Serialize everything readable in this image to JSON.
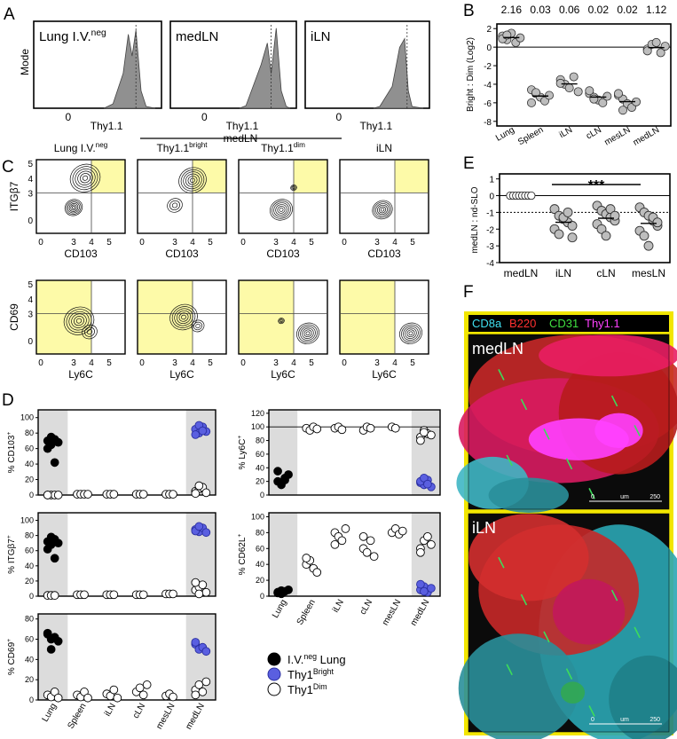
{
  "panel_letters": {
    "a": "A",
    "b": "B",
    "c": "C",
    "d": "D",
    "e": "E",
    "f": "F"
  },
  "panelA": {
    "ylabel": "Mode",
    "xlabel": "Thy1.1",
    "tick": "0",
    "titles": [
      "Lung I.V.",
      "medLN",
      "iLN"
    ],
    "title_sup": "neg"
  },
  "panelB": {
    "ylabel": "Bright : Dim (Log2)",
    "ratios": [
      "2.16",
      "0.03",
      "0.06",
      "0.02",
      "0.02",
      "1.12"
    ],
    "categories": [
      "Lung",
      "Spleen",
      "iLN",
      "cLN",
      "mesLN",
      "medLN"
    ],
    "yticks": [
      "2",
      "0",
      "-2",
      "-4",
      "-6",
      "-8"
    ]
  },
  "panelC": {
    "col_titles": [
      "Lung I.V.",
      "Thy1.1",
      "Thy1.1",
      "iLN"
    ],
    "col_sups": [
      "neg",
      "bright",
      "dim",
      ""
    ],
    "group_label": "medLN",
    "row1": {
      "ylabel": "ITGβ7",
      "xlabel": "CD103"
    },
    "row2": {
      "ylabel": "CD69",
      "xlabel": "Ly6C"
    },
    "row1_yticks": [
      "5",
      "4",
      "3",
      "0"
    ],
    "row2_yticks": [
      "5",
      "4",
      "3",
      "0"
    ],
    "xticks": [
      "0",
      "3",
      "4",
      "5"
    ]
  },
  "panelD": {
    "categories": [
      "Lung",
      "Spleen",
      "iLN",
      "cLN",
      "mesLN",
      "medLN"
    ],
    "plots": [
      {
        "ylabel": "% CD103",
        "yticks": [
          "100",
          "80",
          "60",
          "40",
          "20",
          "0"
        ]
      },
      {
        "ylabel": "% ITGβ7",
        "yticks": [
          "100",
          "80",
          "60",
          "40",
          "20",
          "0"
        ]
      },
      {
        "ylabel": "% CD69",
        "yticks": [
          "80",
          "60",
          "40",
          "20",
          "0"
        ]
      },
      {
        "ylabel": "% Ly6C",
        "yticks": [
          "120",
          "100",
          "80",
          "60",
          "40",
          "20",
          "0"
        ]
      },
      {
        "ylabel": "% CD62L",
        "yticks": [
          "100",
          "80",
          "60",
          "40",
          "20",
          "0"
        ]
      }
    ],
    "legend": [
      {
        "label": "I.V.",
        "sup": "neg",
        "tail": " Lung",
        "color": "#000000"
      },
      {
        "label": "Thy1",
        "sup": "Bright",
        "tail": "",
        "color": "#5a5fe0"
      },
      {
        "label": "Thy1",
        "sup": "Dim",
        "tail": "",
        "color": "#ffffff"
      }
    ]
  },
  "panelE": {
    "ylabel": "medLN : nd-SLO",
    "categories": [
      "medLN",
      "iLN",
      "cLN",
      "mesLN"
    ],
    "yticks": [
      "1",
      "0",
      "-1",
      "-2",
      "-3",
      "-4"
    ],
    "significance": "***"
  },
  "panelF": {
    "channels": [
      {
        "label": "CD8a",
        "color": "#40e0f0"
      },
      {
        "label": "B220",
        "color": "#ff3030"
      },
      {
        "label": "CD31",
        "color": "#40e040"
      },
      {
        "label": "Thy1.1",
        "color": "#ff40ff"
      }
    ],
    "images": [
      "medLN",
      "iLN"
    ],
    "scale": [
      "0",
      "um",
      "250"
    ]
  },
  "colors": {
    "highlight": "#fdfaa8",
    "gray": "#bdbdbd",
    "grayBand": "#dcdcdc",
    "bright": "#5a5fe0",
    "frame": "#f2e600"
  },
  "chart_data": [
    {
      "type": "scatter",
      "id": "B",
      "ylabel": "Bright : Dim (Log2)",
      "categories": [
        "Lung",
        "Spleen",
        "iLN",
        "cLN",
        "mesLN",
        "medLN"
      ],
      "ylim": [
        -8,
        2
      ],
      "series": [
        {
          "values": [
            [
              1.2,
              0.8,
              1.5,
              0.5,
              1.0,
              0.9,
              1.3
            ],
            [
              -4.6,
              -5.0,
              -5.4,
              -5.8,
              -5.2,
              -6.0,
              -4.9
            ],
            [
              -3.5,
              -4.0,
              -4.4,
              -3.2,
              -4.8,
              -3.9
            ],
            [
              -5.0,
              -5.4,
              -5.7,
              -6.0,
              -5.3,
              -4.7,
              -5.6
            ],
            [
              -5.2,
              -5.6,
              -6.1,
              -6.5,
              -5.9,
              -5.0,
              -6.8
            ],
            [
              -0.2,
              0.3,
              0.5,
              -0.6,
              0.1,
              -0.4
            ]
          ]
        }
      ]
    },
    {
      "type": "scatter",
      "id": "E",
      "ylabel": "medLN : nd-SLO",
      "categories": [
        "medLN",
        "iLN",
        "cLN",
        "mesLN"
      ],
      "ylim": [
        -4,
        1
      ],
      "series": [
        {
          "values": [
            [
              0,
              0,
              0,
              0,
              0,
              0,
              0,
              0
            ],
            [
              -0.8,
              -1.2,
              -1.4,
              -1.6,
              -1.8,
              -2.0,
              -2.3,
              -1.3,
              -1.0,
              -2.5
            ],
            [
              -0.6,
              -0.9,
              -1.1,
              -1.3,
              -1.5,
              -1.7,
              -2.0,
              -2.4,
              -0.8,
              -1.2
            ],
            [
              -0.7,
              -1.0,
              -1.2,
              -1.5,
              -1.8,
              -2.1,
              -2.4,
              -3.0,
              -1.3,
              -1.6
            ]
          ]
        }
      ]
    },
    {
      "type": "scatter",
      "id": "D",
      "categories": [
        "Lung",
        "Spleen",
        "iLN",
        "cLN",
        "mesLN",
        "medLN"
      ],
      "series": [
        {
          "name": "I.V.neg Lung",
          "plot": "CD103",
          "values": [
            [
              70,
              65,
              72,
              68,
              60,
              75,
              42
            ]
          ]
        },
        {
          "name": "Thy1Bright",
          "plot": "CD103",
          "values": [
            [
              85,
              80,
              88,
              82,
              78,
              90,
              83
            ]
          ]
        },
        {
          "name": "Thy1Dim",
          "plot": "CD103",
          "values": [
            [
              0,
              0,
              0,
              0,
              0
            ],
            [
              1,
              1,
              1,
              1
            ],
            [
              1,
              1,
              1
            ],
            [
              1,
              1,
              1
            ],
            [
              1,
              1,
              1
            ],
            [
              5,
              8,
              10,
              3,
              2,
              12
            ]
          ]
        },
        {
          "name": "I.V.neg Lung",
          "plot": "ITGb7",
          "values": [
            [
              72,
              68,
              75,
              70,
              62,
              78,
              50
            ]
          ]
        },
        {
          "name": "Thy1Bright",
          "plot": "ITGb7",
          "values": [
            [
              88,
              85,
              90,
              84,
              86,
              92
            ]
          ]
        },
        {
          "name": "Thy1Dim",
          "plot": "ITGb7",
          "values": [
            [
              1,
              1,
              1
            ],
            [
              2,
              2,
              2
            ],
            [
              2,
              2,
              2
            ],
            [
              2,
              2,
              2
            ],
            [
              3,
              3,
              3
            ],
            [
              8,
              12,
              15,
              5,
              18,
              3
            ]
          ]
        },
        {
          "name": "I.V.neg Lung",
          "plot": "CD69",
          "values": [
            [
              65,
              60,
              62,
              58,
              66,
              50
            ]
          ]
        },
        {
          "name": "Thy1Bright",
          "plot": "CD69",
          "values": [
            [
              55,
              50,
              52,
              48,
              57
            ]
          ]
        },
        {
          "name": "Thy1Dim",
          "plot": "CD69",
          "values": [
            [
              5,
              3,
              8,
              2
            ],
            [
              5,
              3,
              8,
              2
            ],
            [
              6,
              4,
              10,
              2
            ],
            [
              8,
              12,
              5,
              15
            ],
            [
              4,
              6,
              3
            ],
            [
              10,
              15,
              8,
              18,
              5
            ]
          ]
        },
        {
          "name": "I.V.neg Lung",
          "plot": "Ly6C",
          "values": [
            [
              20,
              15,
              22,
              30,
              35,
              18,
              25
            ]
          ]
        },
        {
          "name": "Thy1Bright",
          "plot": "Ly6C",
          "values": [
            [
              18,
              15,
              22,
              12,
              20,
              25,
              16
            ]
          ]
        },
        {
          "name": "Thy1Dim",
          "plot": "Ly6C",
          "values": [
            [],
            [
              98,
              95,
              100,
              97
            ],
            [
              98,
              100,
              96
            ],
            [
              95,
              100,
              98
            ],
            [
              100,
              98
            ],
            [
              85,
              95,
              90,
              88,
              80,
              92
            ]
          ]
        },
        {
          "name": "I.V.neg Lung",
          "plot": "CD62L",
          "values": [
            [
              5,
              3,
              6,
              8,
              4,
              7
            ]
          ]
        },
        {
          "name": "Thy1Bright",
          "plot": "CD62L",
          "values": [
            [
              8,
              12,
              5,
              10,
              15,
              6
            ]
          ]
        },
        {
          "name": "Thy1Dim",
          "plot": "CD62L",
          "values": [
            [],
            [
              40,
              45,
              35,
              30,
              48
            ],
            [
              80,
              75,
              70,
              85,
              65
            ],
            [
              60,
              55,
              70,
              50,
              75
            ],
            [
              80,
              85,
              78,
              82
            ],
            [
              60,
              70,
              75,
              65,
              55
            ]
          ]
        }
      ]
    }
  ]
}
